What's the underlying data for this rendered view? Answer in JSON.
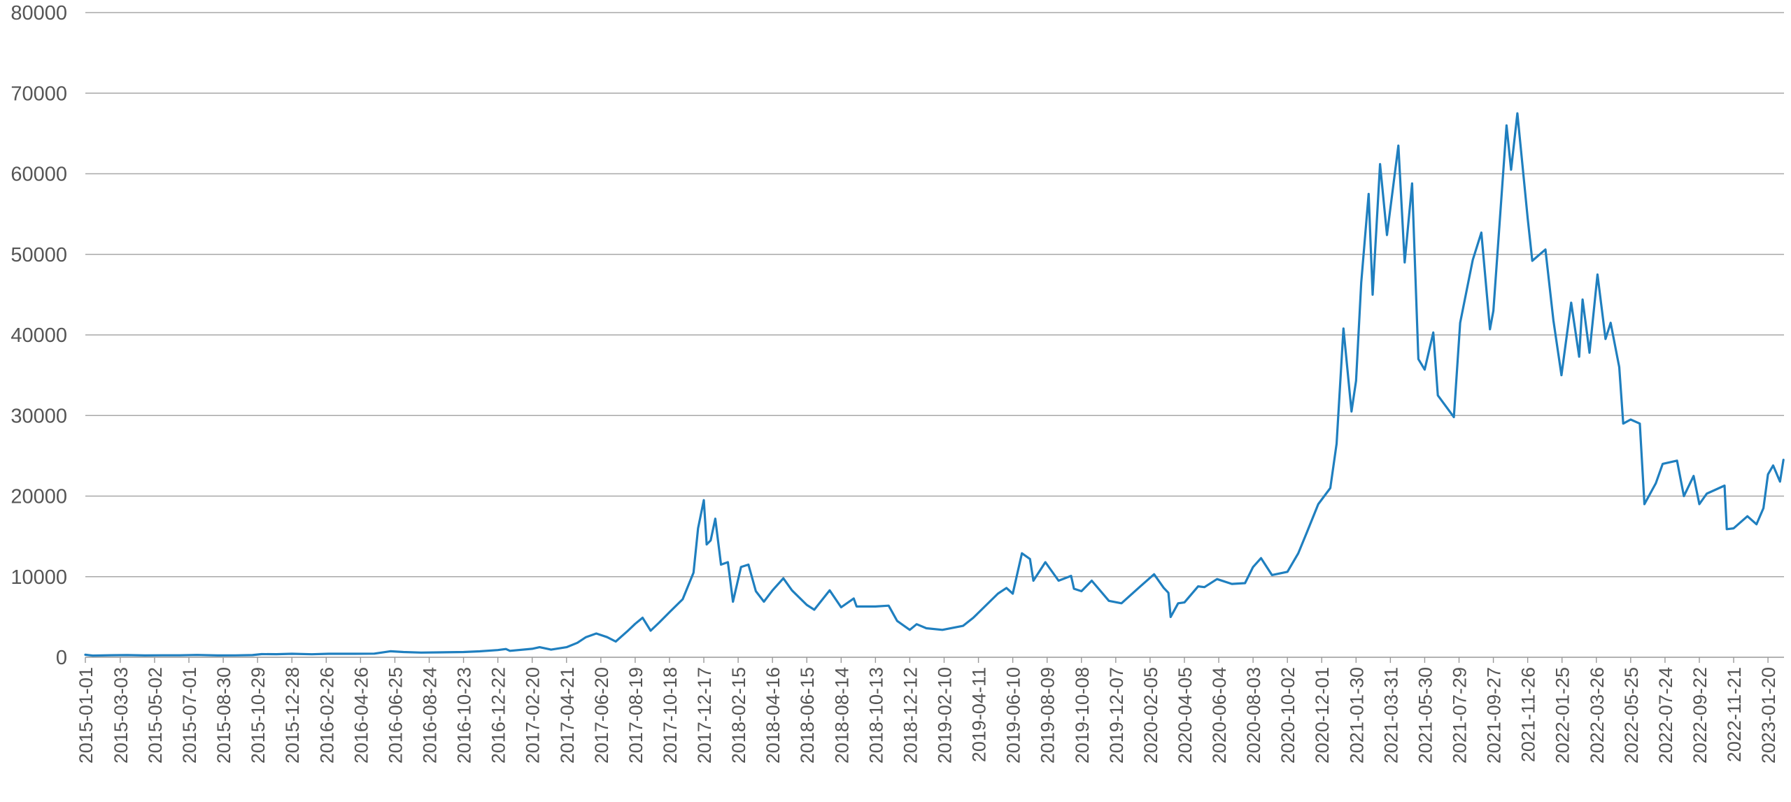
{
  "chart_data": {
    "type": "line",
    "title": "",
    "xlabel": "",
    "ylabel": "",
    "ylim": [
      0,
      80000
    ],
    "y_ticks": [
      0,
      10000,
      20000,
      30000,
      40000,
      50000,
      60000,
      70000,
      80000
    ],
    "x_tick_labels": [
      "2015-01-01",
      "2015-03-03",
      "2015-05-02",
      "2015-07-01",
      "2015-08-30",
      "2015-10-29",
      "2015-12-28",
      "2016-02-26",
      "2016-04-26",
      "2016-06-25",
      "2016-08-24",
      "2016-10-23",
      "2016-12-22",
      "2017-02-20",
      "2017-04-21",
      "2017-06-20",
      "2017-08-19",
      "2017-10-18",
      "2017-12-17",
      "2018-02-15",
      "2018-04-16",
      "2018-06-15",
      "2018-08-14",
      "2018-10-13",
      "2018-12-12",
      "2019-02-10",
      "2019-04-11",
      "2019-06-10",
      "2019-08-09",
      "2019-10-08",
      "2019-12-07",
      "2020-02-05",
      "2020-04-05",
      "2020-06-04",
      "2020-08-03",
      "2020-10-02",
      "2020-12-01",
      "2021-01-30",
      "2021-03-31",
      "2021-05-30",
      "2021-07-29",
      "2021-09-27",
      "2021-11-26",
      "2022-01-25",
      "2022-03-26",
      "2022-05-25",
      "2022-07-24",
      "2022-09-22",
      "2022-11-21",
      "2023-01-20"
    ],
    "grid": "horizontal",
    "legend": "none",
    "color": "#1f7fbf",
    "series": [
      {
        "points": [
          [
            "2015-01-01",
            315
          ],
          [
            "2015-01-14",
            210
          ],
          [
            "2015-02-15",
            250
          ],
          [
            "2015-03-15",
            270
          ],
          [
            "2015-04-15",
            225
          ],
          [
            "2015-05-15",
            240
          ],
          [
            "2015-06-15",
            245
          ],
          [
            "2015-07-15",
            285
          ],
          [
            "2015-08-20",
            225
          ],
          [
            "2015-09-20",
            232
          ],
          [
            "2015-10-20",
            270
          ],
          [
            "2015-11-05",
            390
          ],
          [
            "2015-12-01",
            380
          ],
          [
            "2015-12-28",
            430
          ],
          [
            "2016-02-01",
            375
          ],
          [
            "2016-03-01",
            430
          ],
          [
            "2016-04-15",
            430
          ],
          [
            "2016-05-20",
            450
          ],
          [
            "2016-06-17",
            750
          ],
          [
            "2016-07-10",
            650
          ],
          [
            "2016-08-10",
            580
          ],
          [
            "2016-09-10",
            610
          ],
          [
            "2016-10-23",
            650
          ],
          [
            "2016-11-20",
            740
          ],
          [
            "2016-12-22",
            890
          ],
          [
            "2017-01-05",
            1020
          ],
          [
            "2017-01-12",
            800
          ],
          [
            "2017-02-20",
            1050
          ],
          [
            "2017-03-05",
            1250
          ],
          [
            "2017-03-25",
            950
          ],
          [
            "2017-04-21",
            1250
          ],
          [
            "2017-05-10",
            1800
          ],
          [
            "2017-05-25",
            2500
          ],
          [
            "2017-06-12",
            2950
          ],
          [
            "2017-07-01",
            2500
          ],
          [
            "2017-07-16",
            1950
          ],
          [
            "2017-08-05",
            3200
          ],
          [
            "2017-08-19",
            4150
          ],
          [
            "2017-09-01",
            4900
          ],
          [
            "2017-09-15",
            3300
          ],
          [
            "2017-09-30",
            4300
          ],
          [
            "2017-10-18",
            5600
          ],
          [
            "2017-11-10",
            7200
          ],
          [
            "2017-11-29",
            10500
          ],
          [
            "2017-12-07",
            16000
          ],
          [
            "2017-12-17",
            19500
          ],
          [
            "2017-12-22",
            14000
          ],
          [
            "2017-12-29",
            14500
          ],
          [
            "2018-01-06",
            17200
          ],
          [
            "2018-01-16",
            11500
          ],
          [
            "2018-01-28",
            11800
          ],
          [
            "2018-02-06",
            6900
          ],
          [
            "2018-02-20",
            11200
          ],
          [
            "2018-03-05",
            11500
          ],
          [
            "2018-03-18",
            8200
          ],
          [
            "2018-04-01",
            6900
          ],
          [
            "2018-04-16",
            8300
          ],
          [
            "2018-05-05",
            9800
          ],
          [
            "2018-05-20",
            8300
          ],
          [
            "2018-06-15",
            6500
          ],
          [
            "2018-06-28",
            5900
          ],
          [
            "2018-07-25",
            8300
          ],
          [
            "2018-08-14",
            6200
          ],
          [
            "2018-09-05",
            7300
          ],
          [
            "2018-09-10",
            6300
          ],
          [
            "2018-10-13",
            6300
          ],
          [
            "2018-11-05",
            6400
          ],
          [
            "2018-11-20",
            4500
          ],
          [
            "2018-12-12",
            3400
          ],
          [
            "2018-12-24",
            4100
          ],
          [
            "2019-01-10",
            3600
          ],
          [
            "2019-02-07",
            3400
          ],
          [
            "2019-03-15",
            3900
          ],
          [
            "2019-04-02",
            4900
          ],
          [
            "2019-05-15",
            7900
          ],
          [
            "2019-05-30",
            8600
          ],
          [
            "2019-06-10",
            7900
          ],
          [
            "2019-06-26",
            12900
          ],
          [
            "2019-07-10",
            12200
          ],
          [
            "2019-07-16",
            9500
          ],
          [
            "2019-08-06",
            11800
          ],
          [
            "2019-08-29",
            9500
          ],
          [
            "2019-09-20",
            10100
          ],
          [
            "2019-09-25",
            8500
          ],
          [
            "2019-10-08",
            8200
          ],
          [
            "2019-10-26",
            9500
          ],
          [
            "2019-11-25",
            7000
          ],
          [
            "2019-12-17",
            6700
          ],
          [
            "2020-01-19",
            8800
          ],
          [
            "2020-02-12",
            10300
          ],
          [
            "2020-02-29",
            8600
          ],
          [
            "2020-03-08",
            8000
          ],
          [
            "2020-03-12",
            5000
          ],
          [
            "2020-03-25",
            6700
          ],
          [
            "2020-04-05",
            6800
          ],
          [
            "2020-04-29",
            8800
          ],
          [
            "2020-05-10",
            8700
          ],
          [
            "2020-06-01",
            9700
          ],
          [
            "2020-06-27",
            9100
          ],
          [
            "2020-07-20",
            9200
          ],
          [
            "2020-08-03",
            11200
          ],
          [
            "2020-08-17",
            12300
          ],
          [
            "2020-09-05",
            10200
          ],
          [
            "2020-10-02",
            10600
          ],
          [
            "2020-10-21",
            12900
          ],
          [
            "2020-11-05",
            15500
          ],
          [
            "2020-11-25",
            19000
          ],
          [
            "2020-12-16",
            21000
          ],
          [
            "2020-12-27",
            26500
          ],
          [
            "2021-01-08",
            40800
          ],
          [
            "2021-01-22",
            30500
          ],
          [
            "2021-01-30",
            34300
          ],
          [
            "2021-02-08",
            46500
          ],
          [
            "2021-02-21",
            57500
          ],
          [
            "2021-02-28",
            45000
          ],
          [
            "2021-03-13",
            61200
          ],
          [
            "2021-03-25",
            52400
          ],
          [
            "2021-04-14",
            63500
          ],
          [
            "2021-04-25",
            49000
          ],
          [
            "2021-05-08",
            58800
          ],
          [
            "2021-05-19",
            37000
          ],
          [
            "2021-05-30",
            35700
          ],
          [
            "2021-06-14",
            40300
          ],
          [
            "2021-06-22",
            32500
          ],
          [
            "2021-07-20",
            29800
          ],
          [
            "2021-07-31",
            41500
          ],
          [
            "2021-08-22",
            49300
          ],
          [
            "2021-09-06",
            52700
          ],
          [
            "2021-09-21",
            40700
          ],
          [
            "2021-09-27",
            43000
          ],
          [
            "2021-10-20",
            66000
          ],
          [
            "2021-10-28",
            60500
          ],
          [
            "2021-11-08",
            67500
          ],
          [
            "2021-11-26",
            54500
          ],
          [
            "2021-12-04",
            49200
          ],
          [
            "2021-12-27",
            50600
          ],
          [
            "2022-01-10",
            41800
          ],
          [
            "2022-01-24",
            35000
          ],
          [
            "2022-02-10",
            44000
          ],
          [
            "2022-02-24",
            37300
          ],
          [
            "2022-03-02",
            44400
          ],
          [
            "2022-03-14",
            37800
          ],
          [
            "2022-03-28",
            47500
          ],
          [
            "2022-04-11",
            39500
          ],
          [
            "2022-04-20",
            41500
          ],
          [
            "2022-05-05",
            36000
          ],
          [
            "2022-05-12",
            29000
          ],
          [
            "2022-05-25",
            29500
          ],
          [
            "2022-06-10",
            29000
          ],
          [
            "2022-06-18",
            19000
          ],
          [
            "2022-07-08",
            21600
          ],
          [
            "2022-07-20",
            24000
          ],
          [
            "2022-08-14",
            24400
          ],
          [
            "2022-08-26",
            20000
          ],
          [
            "2022-09-12",
            22500
          ],
          [
            "2022-09-22",
            19000
          ],
          [
            "2022-10-05",
            20300
          ],
          [
            "2022-11-05",
            21300
          ],
          [
            "2022-11-09",
            15900
          ],
          [
            "2022-11-21",
            16000
          ],
          [
            "2022-12-15",
            17500
          ],
          [
            "2022-12-31",
            16500
          ],
          [
            "2023-01-12",
            18500
          ],
          [
            "2023-01-20",
            22700
          ],
          [
            "2023-01-29",
            23800
          ],
          [
            "2023-02-10",
            21800
          ],
          [
            "2023-02-16",
            24500
          ]
        ]
      }
    ]
  }
}
